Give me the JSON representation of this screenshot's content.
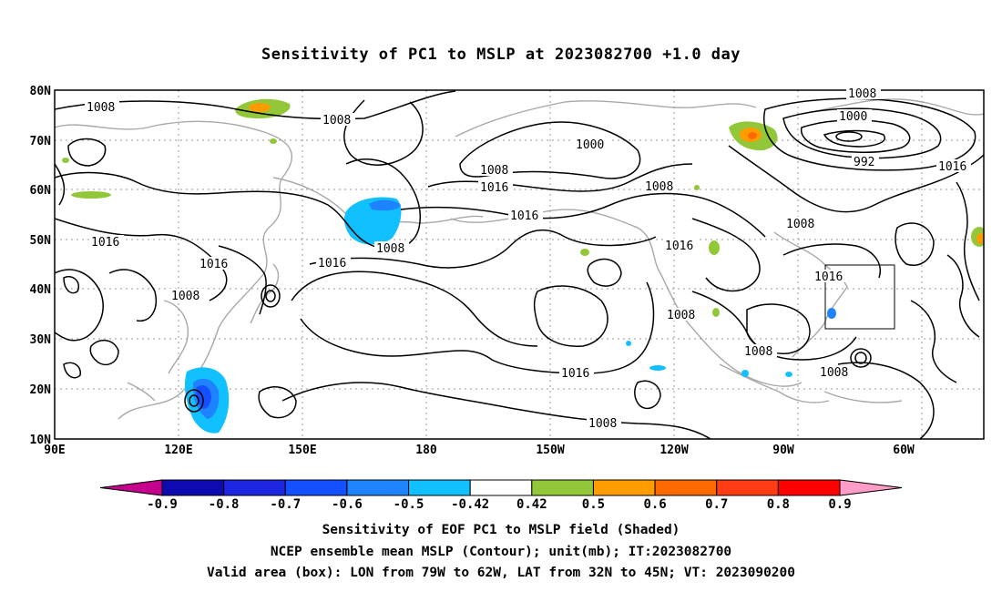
{
  "title": "Sensitivity of PC1 to MSLP at 2023082700 +1.0 day",
  "lat_labels": [
    "80N",
    "70N",
    "60N",
    "50N",
    "40N",
    "30N",
    "20N",
    "10N"
  ],
  "lon_labels": [
    "90E",
    "120E",
    "150E",
    "180",
    "150W",
    "120W",
    "90W",
    "60W"
  ],
  "contour_labels": {
    "c1": "1008",
    "c2": "1008",
    "c3": "1008",
    "c4": "1000",
    "c5": "992",
    "c6": "1016",
    "c7": "1000",
    "c8": "1008",
    "c9": "1016",
    "c10": "1008",
    "c11": "1016",
    "c12": "1008",
    "c13": "1008",
    "c14": "1016",
    "c15": "1016",
    "c16": "1016",
    "c17": "1008",
    "c18": "1016",
    "c19": "1016",
    "c20": "1008",
    "c21": "1016",
    "c22": "1016",
    "c23": "1008",
    "c24": "1008",
    "c25": "1008",
    "c26": "1008"
  },
  "colorbar": {
    "labels": [
      "-0.9",
      "-0.8",
      "-0.7",
      "-0.6",
      "-0.5",
      "-0.42",
      "0.42",
      "0.5",
      "0.6",
      "0.7",
      "0.8",
      "0.9"
    ],
    "colors": [
      "#c4008c",
      "#0b0bb0",
      "#1d26e0",
      "#1450ff",
      "#1f82ff",
      "#10c0ff",
      "#ffffff",
      "#93c73a",
      "#ff9c00",
      "#ff6a00",
      "#ff3c14",
      "#ff0000",
      "#ff9cc8"
    ]
  },
  "footer": {
    "line1": "Sensitivity of EOF PC1 to MSLP field (Shaded)",
    "line2": "NCEP ensemble mean MSLP (Contour); unit(mb); IT:2023082700",
    "line3": "Valid area (box): LON from 79W to 62W, LAT from 32N to 45N; VT: 2023090200"
  }
}
